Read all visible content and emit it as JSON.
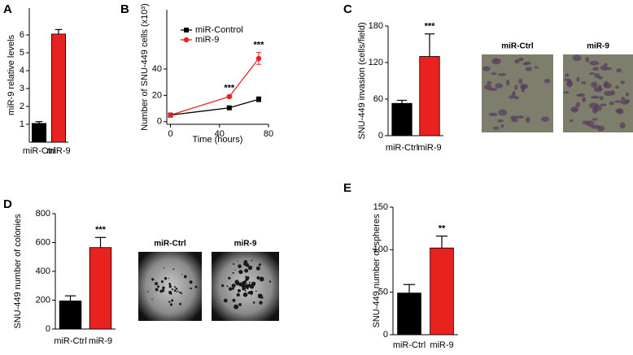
{
  "chart_data": [
    {
      "type": "bar",
      "label": "A",
      "y_label": "miR-9 relative levels",
      "categories": [
        "miR-Ctrl",
        "miR-9"
      ],
      "values": [
        1.05,
        6.05
      ],
      "errors": [
        0.1,
        0.25
      ],
      "colors": [
        "#000000",
        "#e8221f"
      ],
      "ylim": [
        0,
        7.5
      ],
      "yticks": [
        1,
        2,
        3,
        4,
        5,
        6
      ]
    },
    {
      "type": "line",
      "label": "B",
      "y_label": "Number of SNU-449 cells (x10³)",
      "x_label": "Time (hours)",
      "x": [
        0,
        48,
        72
      ],
      "series": [
        {
          "name": "miR-Control",
          "color": "#000000",
          "values": [
            5,
            10.5,
            17
          ],
          "errors": [
            0.5,
            1.2,
            1.8
          ]
        },
        {
          "name": "miR-9",
          "color": "#e8221f",
          "values": [
            5,
            19,
            48
          ],
          "errors": [
            0.5,
            1,
            4.5
          ],
          "annotations": [
            null,
            "***",
            "***"
          ]
        }
      ],
      "xlim": [
        -3,
        80
      ],
      "xticks": [
        0,
        40,
        80
      ],
      "ylim": [
        -2,
        85
      ],
      "yticks": [
        0,
        20,
        40
      ]
    },
    {
      "type": "bar",
      "label": "C",
      "y_label": "SNU-449 invasion (cells/field)",
      "categories": [
        "miR-Ctrl",
        "miR-9"
      ],
      "values": [
        53,
        130
      ],
      "errors": [
        5,
        37
      ],
      "annotations": [
        null,
        "***"
      ],
      "colors": [
        "#000000",
        "#e8221f"
      ],
      "ylim": [
        0,
        180
      ],
      "yticks": [
        0,
        60,
        120,
        180
      ],
      "images": [
        "miR-Ctrl",
        "miR-9"
      ]
    },
    {
      "type": "bar",
      "label": "D",
      "y_label": "SNU-449 number of colonies",
      "categories": [
        "miR-Ctrl",
        "miR-9"
      ],
      "values": [
        195,
        565
      ],
      "errors": [
        35,
        70
      ],
      "annotations": [
        null,
        "***"
      ],
      "colors": [
        "#000000",
        "#e8221f"
      ],
      "ylim": [
        0,
        800
      ],
      "yticks": [
        0,
        200,
        400,
        600,
        800
      ],
      "images": [
        "miR-Ctrl",
        "miR-9"
      ]
    },
    {
      "type": "bar",
      "label": "E",
      "y_label": "SNU-449 number of spheres",
      "categories": [
        "miR-Ctrl",
        "miR-9"
      ],
      "values": [
        49,
        102
      ],
      "errors": [
        10,
        14
      ],
      "annotations": [
        null,
        "**"
      ],
      "colors": [
        "#000000",
        "#e8221f"
      ],
      "ylim": [
        0,
        150
      ],
      "yticks": [
        0,
        50,
        100,
        150
      ]
    }
  ]
}
